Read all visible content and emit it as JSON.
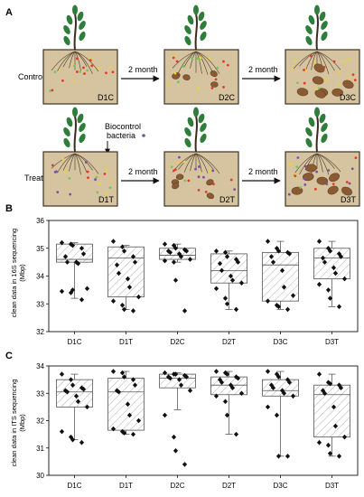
{
  "panel_a": {
    "label": "A",
    "row_control": "Control",
    "row_treat": "Treat",
    "arrow_label": "2 month",
    "biocontrol_label_1": "Biocontrol",
    "biocontrol_label_2": "bacteria",
    "boxes": {
      "d1c": "D1C",
      "d2c": "D2C",
      "d3c": "D3C",
      "d1t": "D1T",
      "d2t": "D2T",
      "d3t": "D3T"
    },
    "colors": {
      "soil": "#d6c4a0",
      "soil_border": "#3a3326",
      "stem": "#3d2b1c",
      "leaf": "#2f7d3a",
      "tuber": "#8a5a33",
      "dot_red": "#e23b2e",
      "dot_yellow": "#e7d43b",
      "dot_green": "#7cc35a",
      "dot_purple": "#7b4fa6"
    }
  },
  "chart_data": [
    {
      "panel_label": "B",
      "type": "box",
      "ylabel_line1": "clean data in 16S sequencing",
      "ylabel_line2": "(Mbp)",
      "ylim": [
        32,
        36
      ],
      "yticks": [
        "32",
        "33",
        "34",
        "35",
        "36"
      ],
      "categories": [
        "D1C",
        "D1T",
        "D2C",
        "D2T",
        "D3C",
        "D3T"
      ],
      "boxes": [
        {
          "q1": 34.5,
          "median": 34.6,
          "q3": 35.15,
          "whisker_low": 33.2,
          "whisker_high": 35.2
        },
        {
          "q1": 33.25,
          "median": 34.65,
          "q3": 35.05,
          "whisker_low": 32.8,
          "whisker_high": 35.1
        },
        {
          "q1": 34.6,
          "median": 34.75,
          "q3": 35.0,
          "whisker_low": 34.5,
          "whisker_high": 35.15
        },
        {
          "q1": 33.75,
          "median": 34.2,
          "q3": 34.8,
          "whisker_low": 32.8,
          "whisker_high": 34.9
        },
        {
          "q1": 33.1,
          "median": 34.4,
          "q3": 34.85,
          "whisker_low": 32.8,
          "whisker_high": 35.25
        },
        {
          "q1": 33.9,
          "median": 34.65,
          "q3": 35.0,
          "whisker_low": 32.9,
          "whisker_high": 35.25
        }
      ],
      "points": [
        [
          35.2,
          35.15,
          35.1,
          35.0,
          34.8,
          34.7,
          34.5,
          34.5,
          34.45,
          33.55,
          33.45,
          33.4,
          33.5,
          33.15
        ],
        [
          35.25,
          35.05,
          34.9,
          34.7,
          34.5,
          34.4,
          34.1,
          33.9,
          33.6,
          33.25,
          33.1,
          32.95,
          32.8,
          32.75
        ],
        [
          35.15,
          35.1,
          35.0,
          34.95,
          34.9,
          34.9,
          34.85,
          34.8,
          34.7,
          34.6,
          34.55,
          34.5,
          33.85,
          32.75
        ],
        [
          34.9,
          34.85,
          34.7,
          34.6,
          34.5,
          34.45,
          34.2,
          34.0,
          33.85,
          33.75,
          33.55,
          33.2,
          33.0,
          32.8
        ],
        [
          35.25,
          35.0,
          34.9,
          34.85,
          34.8,
          34.7,
          34.5,
          34.2,
          33.6,
          33.3,
          33.1,
          32.95,
          32.9,
          32.8
        ],
        [
          35.25,
          35.0,
          34.9,
          34.8,
          34.7,
          34.65,
          34.5,
          34.3,
          34.1,
          33.9,
          33.7,
          33.5,
          33.2,
          32.9
        ]
      ]
    },
    {
      "panel_label": "C",
      "type": "box",
      "ylabel_line1": "clean data in ITS sequencing",
      "ylabel_line2": "(Mbp)",
      "ylim": [
        30,
        34
      ],
      "yticks": [
        "30",
        "31",
        "32",
        "33",
        "34"
      ],
      "categories": [
        "D1C",
        "D1T",
        "D2C",
        "D2T",
        "D3C",
        "D3T"
      ],
      "boxes": [
        {
          "q1": 32.5,
          "median": 33.05,
          "q3": 33.5,
          "whisker_low": 31.3,
          "whisker_high": 33.7
        },
        {
          "q1": 31.65,
          "median": 33.05,
          "q3": 33.55,
          "whisker_low": 31.5,
          "whisker_high": 33.8
        },
        {
          "q1": 33.2,
          "median": 33.55,
          "q3": 33.7,
          "whisker_low": 32.4,
          "whisker_high": 33.75
        },
        {
          "q1": 32.95,
          "median": 33.3,
          "q3": 33.6,
          "whisker_low": 31.5,
          "whisker_high": 33.8
        },
        {
          "q1": 32.9,
          "median": 33.1,
          "q3": 33.5,
          "whisker_low": 30.7,
          "whisker_high": 33.8
        },
        {
          "q1": 31.4,
          "median": 32.95,
          "q3": 33.3,
          "whisker_low": 30.7,
          "whisker_high": 33.7
        }
      ],
      "points": [
        [
          33.7,
          33.5,
          33.3,
          33.2,
          33.15,
          33.1,
          33.05,
          32.9,
          32.7,
          32.5,
          31.6,
          31.4,
          31.3,
          31.2
        ],
        [
          33.8,
          33.75,
          33.6,
          33.5,
          33.3,
          33.1,
          33.05,
          32.6,
          32.2,
          32.0,
          31.7,
          31.6,
          31.55,
          31.5
        ],
        [
          33.75,
          33.7,
          33.7,
          33.65,
          33.6,
          33.6,
          33.55,
          33.5,
          33.3,
          33.1,
          32.2,
          31.4,
          30.9,
          30.4
        ],
        [
          33.8,
          33.75,
          33.7,
          33.6,
          33.55,
          33.5,
          33.4,
          33.3,
          33.2,
          33.0,
          32.9,
          32.7,
          32.2,
          31.5
        ],
        [
          33.8,
          33.7,
          33.6,
          33.5,
          33.4,
          33.3,
          33.2,
          33.1,
          33.0,
          32.9,
          32.5,
          32.2,
          30.7,
          30.7
        ],
        [
          33.7,
          33.4,
          33.35,
          33.3,
          33.2,
          33.1,
          33.0,
          32.5,
          31.8,
          31.4,
          31.2,
          31.1,
          30.8,
          30.7
        ]
      ]
    }
  ]
}
